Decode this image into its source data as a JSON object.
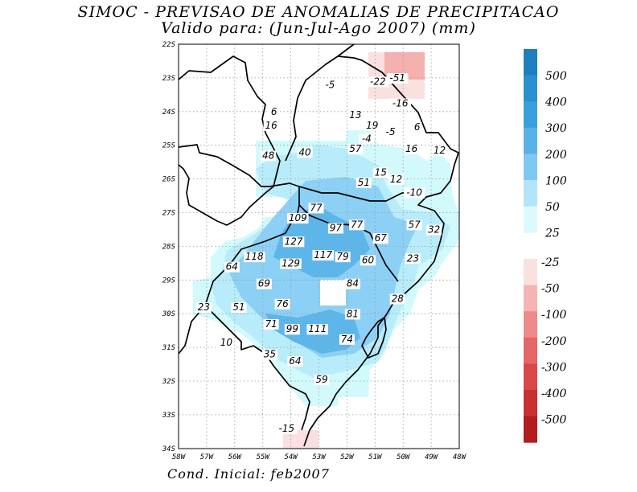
{
  "title": {
    "line1": "SIMOC - PREVISAO DE ANOMALIAS DE PRECIPITACAO",
    "line2": "Valido para: (Jun-Jul-Ago 2007) (mm)"
  },
  "footer": "Cond. Inicial: feb2007",
  "axes": {
    "lat_labels": [
      "22S",
      "23S",
      "24S",
      "25S",
      "26S",
      "27S",
      "28S",
      "29S",
      "30S",
      "31S",
      "32S",
      "33S",
      "34S"
    ],
    "lon_labels": [
      "58W",
      "57W",
      "56W",
      "55W",
      "54W",
      "53W",
      "52W",
      "51W",
      "50W",
      "49W",
      "48W"
    ]
  },
  "colorbar": {
    "positive_labels": [
      "500",
      "400",
      "300",
      "200",
      "100",
      "50",
      "25"
    ],
    "negative_labels": [
      "-25",
      "-50",
      "-100",
      "-200",
      "-300",
      "-400",
      "-500"
    ],
    "positive_colors": [
      "#1e7fc0",
      "#2b90d0",
      "#3a9fdd",
      "#58b2e8",
      "#7fc8f2",
      "#b2e4fa",
      "#dcfafc"
    ],
    "negative_colors": [
      "#fbe0e0",
      "#f6b3b3",
      "#ef8a8a",
      "#e46666",
      "#d84848",
      "#c93030",
      "#b01e1e"
    ]
  },
  "colors": {
    "zone_25": "#d2fafc",
    "zone_50": "#b8ecfa",
    "zone_100": "#8dd0f5",
    "zone_200": "#5cb6ea",
    "neg_25": "#fbe0e0",
    "neg_50": "#f5b0b0"
  },
  "values": [
    {
      "text": "-5",
      "lon": -52.6,
      "lat": -23.3
    },
    {
      "text": "-22",
      "lon": -50.9,
      "lat": -23.2
    },
    {
      "text": "-51",
      "lon": -50.2,
      "lat": -23.1
    },
    {
      "text": "-16",
      "lon": -50.1,
      "lat": -23.85
    },
    {
      "text": "6",
      "lon": -54.6,
      "lat": -24.1
    },
    {
      "text": "16",
      "lon": -54.7,
      "lat": -24.5
    },
    {
      "text": "13",
      "lon": -51.7,
      "lat": -24.2
    },
    {
      "text": "19",
      "lon": -51.1,
      "lat": -24.5
    },
    {
      "text": "6",
      "lon": -49.5,
      "lat": -24.55
    },
    {
      "text": "-5",
      "lon": -50.45,
      "lat": -24.7
    },
    {
      "text": "-4",
      "lon": -51.3,
      "lat": -24.9
    },
    {
      "text": "57",
      "lon": -51.7,
      "lat": -25.2
    },
    {
      "text": "16",
      "lon": -49.7,
      "lat": -25.2
    },
    {
      "text": "12",
      "lon": -48.7,
      "lat": -25.25
    },
    {
      "text": "40",
      "lon": -53.5,
      "lat": -25.3
    },
    {
      "text": "48",
      "lon": -54.8,
      "lat": -25.4
    },
    {
      "text": "15",
      "lon": -50.8,
      "lat": -25.9
    },
    {
      "text": "12",
      "lon": -50.25,
      "lat": -26.1
    },
    {
      "text": "51",
      "lon": -51.4,
      "lat": -26.2
    },
    {
      "text": "-10",
      "lon": -49.6,
      "lat": -26.5
    },
    {
      "text": "77",
      "lon": -53.1,
      "lat": -26.95
    },
    {
      "text": "109",
      "lon": -53.75,
      "lat": -27.25
    },
    {
      "text": "97",
      "lon": -52.4,
      "lat": -27.55
    },
    {
      "text": "77",
      "lon": -51.65,
      "lat": -27.45
    },
    {
      "text": "57",
      "lon": -49.6,
      "lat": -27.45
    },
    {
      "text": "32",
      "lon": -48.9,
      "lat": -27.6
    },
    {
      "text": "67",
      "lon": -50.8,
      "lat": -27.85
    },
    {
      "text": "127",
      "lon": -53.9,
      "lat": -27.95
    },
    {
      "text": "118",
      "lon": -55.3,
      "lat": -28.4
    },
    {
      "text": "117",
      "lon": -52.85,
      "lat": -28.35
    },
    {
      "text": "79",
      "lon": -52.15,
      "lat": -28.4
    },
    {
      "text": "60",
      "lon": -51.25,
      "lat": -28.5
    },
    {
      "text": "23",
      "lon": -49.65,
      "lat": -28.45
    },
    {
      "text": "64",
      "lon": -56.1,
      "lat": -28.7
    },
    {
      "text": "129",
      "lon": -54.0,
      "lat": -28.6
    },
    {
      "text": "69",
      "lon": -54.95,
      "lat": -29.2
    },
    {
      "text": "84",
      "lon": -51.8,
      "lat": -29.2
    },
    {
      "text": "28",
      "lon": -50.2,
      "lat": -29.65
    },
    {
      "text": "76",
      "lon": -54.3,
      "lat": -29.8
    },
    {
      "text": "23",
      "lon": -57.1,
      "lat": -29.9
    },
    {
      "text": "51",
      "lon": -55.85,
      "lat": -29.9
    },
    {
      "text": "81",
      "lon": -51.8,
      "lat": -30.1
    },
    {
      "text": "71",
      "lon": -54.7,
      "lat": -30.4
    },
    {
      "text": "99",
      "lon": -53.95,
      "lat": -30.55
    },
    {
      "text": "111",
      "lon": -53.05,
      "lat": -30.55
    },
    {
      "text": "74",
      "lon": -52.0,
      "lat": -30.85
    },
    {
      "text": "10",
      "lon": -56.3,
      "lat": -30.95
    },
    {
      "text": "35",
      "lon": -54.75,
      "lat": -31.3
    },
    {
      "text": "64",
      "lon": -53.85,
      "lat": -31.5
    },
    {
      "text": "59",
      "lon": -52.9,
      "lat": -32.05
    },
    {
      "text": "-15",
      "lon": -54.15,
      "lat": -33.5
    }
  ]
}
